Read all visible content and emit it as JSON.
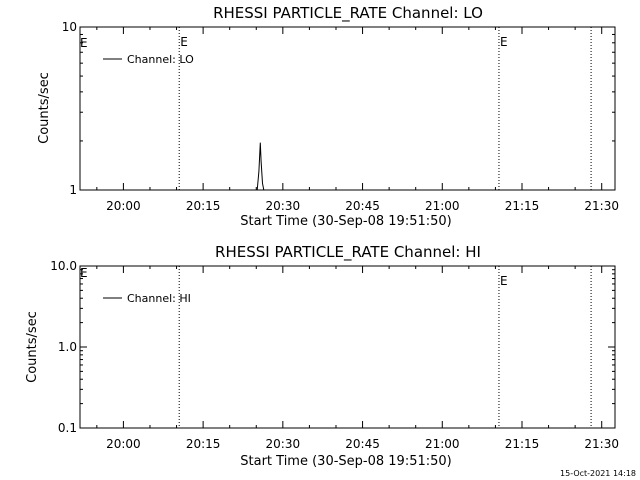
{
  "footer": {
    "timestamp": "15-Oct-2021 14:18"
  },
  "chart_data": [
    {
      "type": "line",
      "title": "RHESSI PARTICLE_RATE Channel: LO",
      "xlabel": "Start Time (30-Sep-08 19:51:50)",
      "ylabel": "Counts/sec",
      "yscale": "log",
      "ylim": [
        1,
        10
      ],
      "y_tick_labels": [
        "10",
        "1"
      ],
      "xlim": [
        "19:51:50",
        "21:32:30"
      ],
      "x_tick_labels": [
        "20:00",
        "20:15",
        "20:30",
        "20:45",
        "21:00",
        "21:15",
        "21:30"
      ],
      "legend": {
        "label": "Channel: LO",
        "placement": "top-left"
      },
      "event_markers": [
        {
          "time": "20:10:30",
          "label": "E"
        },
        {
          "time": "21:10:40",
          "label": "E"
        },
        {
          "time": "21:28:00",
          "label": ""
        }
      ],
      "edge_label": "E",
      "series": [
        {
          "name": "Channel: LO",
          "x": [
            "20:25:10",
            "20:25:30",
            "20:25:45",
            "20:25:55",
            "20:26:10",
            "20:26:25"
          ],
          "values": [
            1,
            1.3,
            1.95,
            1.5,
            1.1,
            1
          ]
        }
      ]
    },
    {
      "type": "line",
      "title": "RHESSI PARTICLE_RATE Channel: HI",
      "xlabel": "Start Time (30-Sep-08 19:51:50)",
      "ylabel": "Counts/sec",
      "yscale": "log",
      "ylim": [
        0.1,
        10
      ],
      "y_tick_labels": [
        "10.0",
        "1.0",
        "0.1"
      ],
      "xlim": [
        "19:51:50",
        "21:32:30"
      ],
      "x_tick_labels": [
        "20:00",
        "20:15",
        "20:30",
        "20:45",
        "21:00",
        "21:15",
        "21:30"
      ],
      "legend": {
        "label": "Channel: HI",
        "placement": "top-left"
      },
      "event_markers": [
        {
          "time": "20:10:30",
          "label": ""
        },
        {
          "time": "21:10:40",
          "label": "E"
        },
        {
          "time": "21:28:00",
          "label": ""
        }
      ],
      "edge_label": "E",
      "series": [
        {
          "name": "Channel: HI",
          "x": [],
          "values": []
        }
      ]
    }
  ]
}
